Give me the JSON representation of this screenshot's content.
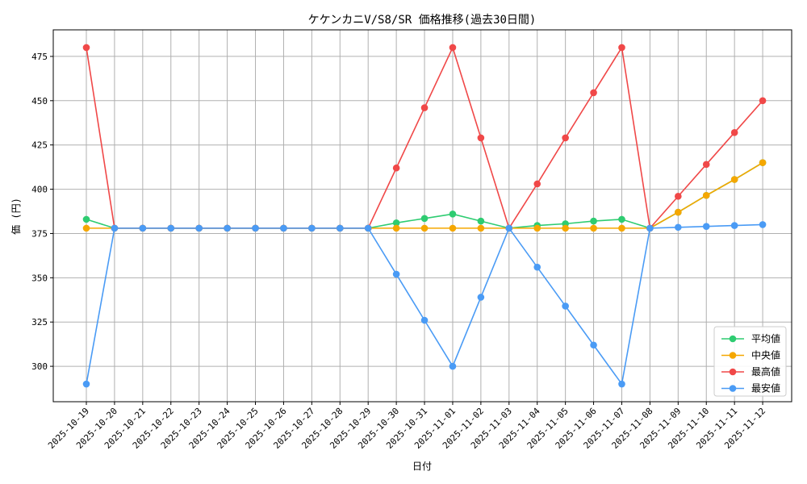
{
  "chart_data": {
    "type": "line",
    "title": "ケケンカニV/S8/SR 価格推移(過去30日間)",
    "xlabel": "日付",
    "ylabel": "価 (円)",
    "categories": [
      "2025-10-19",
      "2025-10-20",
      "2025-10-21",
      "2025-10-22",
      "2025-10-23",
      "2025-10-24",
      "2025-10-25",
      "2025-10-26",
      "2025-10-27",
      "2025-10-28",
      "2025-10-29",
      "2025-10-30",
      "2025-10-31",
      "2025-11-01",
      "2025-11-02",
      "2025-11-03",
      "2025-11-04",
      "2025-11-05",
      "2025-11-06",
      "2025-11-07",
      "2025-11-08",
      "2025-11-09",
      "2025-11-10",
      "2025-11-11",
      "2025-11-12"
    ],
    "ylim": [
      280,
      490
    ],
    "yticks": [
      300,
      325,
      350,
      375,
      400,
      425,
      450,
      475
    ],
    "grid": true,
    "legend_position": "bottom-right",
    "series": [
      {
        "name": "平均値",
        "color": "#2ecc71",
        "values": [
          383,
          378,
          378,
          378,
          378,
          378,
          378,
          378,
          378,
          378,
          378,
          381,
          383.5,
          386,
          382,
          378,
          379.5,
          380.5,
          382,
          383,
          378,
          387,
          396.5,
          405.5,
          415
        ]
      },
      {
        "name": "中央値",
        "color": "#f5a700",
        "values": [
          378,
          378,
          378,
          378,
          378,
          378,
          378,
          378,
          378,
          378,
          378,
          378,
          378,
          378,
          378,
          378,
          378,
          378,
          378,
          378,
          378,
          387,
          396.5,
          405.5,
          415
        ]
      },
      {
        "name": "最高値",
        "color": "#f04848",
        "values": [
          480,
          378,
          378,
          378,
          378,
          378,
          378,
          378,
          378,
          378,
          378,
          412,
          446,
          480,
          429,
          378,
          403,
          429,
          454.5,
          480,
          378,
          396,
          414,
          432,
          450
        ]
      },
      {
        "name": "最安値",
        "color": "#4a9bf5",
        "values": [
          290,
          378,
          378,
          378,
          378,
          378,
          378,
          378,
          378,
          378,
          378,
          352,
          326,
          300,
          339,
          378,
          356,
          334,
          312,
          290,
          378,
          378.5,
          379,
          379.5,
          380
        ]
      }
    ]
  }
}
